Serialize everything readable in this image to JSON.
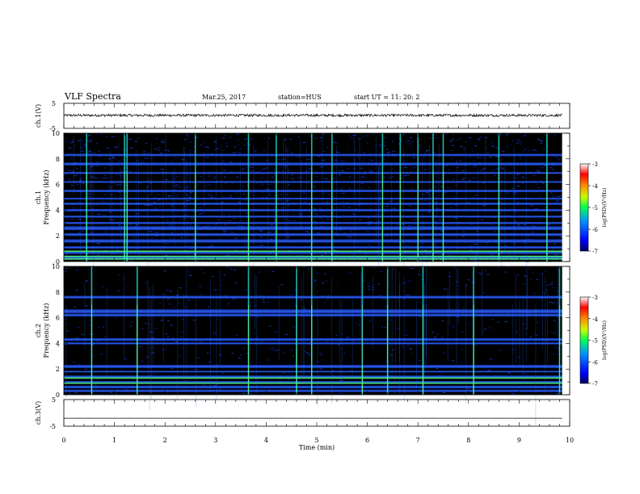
{
  "header": {
    "title": "VLF Spectra",
    "date": "Mar.25, 2017",
    "station": "station=HUS",
    "start": "start UT =  11: 20: 2"
  },
  "chart_data": [
    {
      "type": "line",
      "name": "waveform-ch1",
      "ylabel": "ch.1(V)",
      "ylim": [
        -5,
        5
      ],
      "yticks": [
        "5",
        "-5"
      ],
      "xlim": [
        0,
        10
      ],
      "description_values": {
        "baseline": 0.2,
        "noise_amplitude": 0.5
      },
      "x": [
        0,
        9.85
      ]
    },
    {
      "type": "heatmap",
      "name": "spectrogram-ch1",
      "ylabel_top": "ch.1",
      "ylabel": "Frequency (kHz)",
      "ylim": [
        0,
        10
      ],
      "yticks": [
        "0",
        "2",
        "4",
        "6",
        "8",
        "10"
      ],
      "xlim": [
        0,
        10
      ],
      "bands_khz": [
        0.3,
        0.7,
        1.1,
        1.6,
        2.1,
        2.6,
        3.0,
        3.5,
        4.0,
        4.5,
        4.9,
        5.5,
        6.2,
        6.9,
        7.6,
        8.3
      ],
      "bright_lines_khz": [
        0.2,
        0.4,
        0.8
      ],
      "impulse_times_min": [
        0.45,
        1.2,
        1.25,
        2.6,
        3.65,
        4.2,
        4.9,
        5.3,
        6.3,
        6.65,
        7.0,
        7.3,
        7.5,
        8.6,
        9.55
      ]
    },
    {
      "type": "heatmap",
      "name": "spectrogram-ch2",
      "ylabel_top": "ch.2",
      "ylabel": "Frequency (kHz)",
      "ylim": [
        0,
        10
      ],
      "yticks": [
        "0",
        "2",
        "4",
        "6",
        "8",
        "10"
      ],
      "xlim": [
        0,
        10
      ],
      "bands_khz": [
        0.3,
        0.6,
        1.0,
        1.4,
        1.8,
        2.2,
        4.0,
        4.3,
        6.2,
        6.5,
        7.6
      ],
      "bright_lines_khz": [
        0.9,
        1.3
      ],
      "impulse_times_min": [
        0.55,
        1.45,
        3.65,
        4.6,
        4.9,
        5.9,
        6.4,
        7.1,
        8.1,
        9.8
      ]
    },
    {
      "type": "line",
      "name": "waveform-ch3",
      "ylabel": "ch.3(V)",
      "ylim": [
        -5,
        5
      ],
      "yticks": [
        "5",
        "-5"
      ],
      "xlim": [
        0,
        10
      ],
      "x": [
        0,
        9.85
      ],
      "y": [
        -2,
        -2
      ]
    }
  ],
  "xaxis": {
    "label": "Time (min)",
    "ticks": [
      "0",
      "1",
      "2",
      "3",
      "4",
      "5",
      "6",
      "7",
      "8",
      "9",
      "10"
    ]
  },
  "colorbars": [
    {
      "label": "log(PSD)(V²/Hz)",
      "ticks": [
        "-3",
        "-4",
        "-5",
        "-6",
        "-7"
      ],
      "range": [
        -7,
        -3
      ]
    },
    {
      "label": "log(PSD)(V²/Hz)",
      "ticks": [
        "-3",
        "-4",
        "-5",
        "-6",
        "-7"
      ],
      "range": [
        -7,
        -3
      ]
    }
  ],
  "colors": {
    "background": "#000000",
    "low": "#00008b",
    "mid": "#1e64ff",
    "high": "#00ff64",
    "max": "#ff0000"
  }
}
